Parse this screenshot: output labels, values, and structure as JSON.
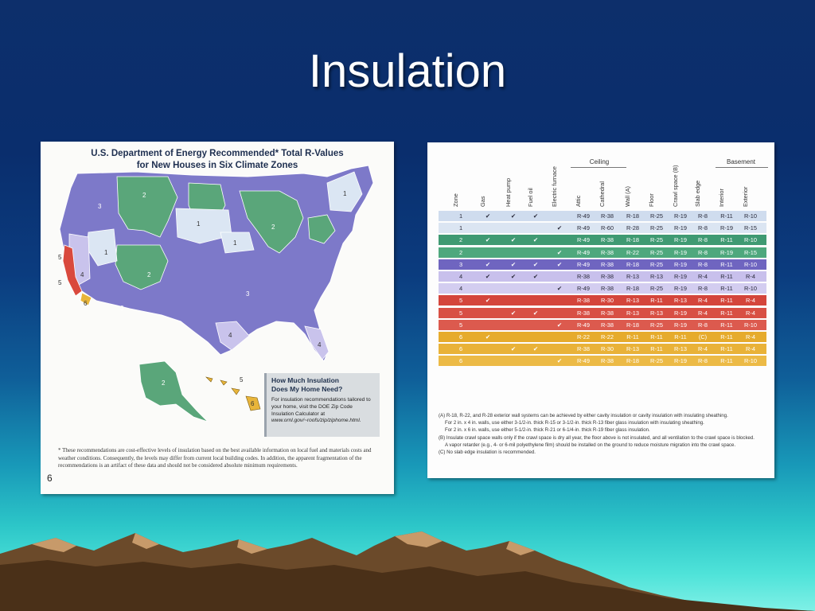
{
  "slide": {
    "title": "Insulation"
  },
  "map_panel": {
    "title_line1": "U.S. Department of Energy Recommended* Total R-Values",
    "title_line2": "for New Houses in Six Climate Zones",
    "zone_labels": [
      "1",
      "1",
      "1",
      "1",
      "2",
      "2",
      "2",
      "3",
      "3",
      "3",
      "4",
      "4",
      "4",
      "5",
      "5",
      "6",
      "2",
      "5",
      "6"
    ],
    "note_title_line1": "How Much Insulation",
    "note_title_line2": "Does My Home Need?",
    "note_body": "For insulation recommendations tailored to your home, visit the DOE Zip Code Insulation Calculator at",
    "note_url": "www.ornl.gov/~roofs/zip/ziphome.html.",
    "footnote": "* These recommendations are cost-effective levels of insulation based on the best available information on local fuel and materials costs and weather conditions. Consequently, the levels may differ from current local building codes. In addition, the apparent fragmentation of the recommendations is an artifact of these data and should not be considered absolute minimum requirements.",
    "page_number": "6",
    "zone_colors": {
      "1": "#dbe6f3",
      "2": "#5aa67a",
      "3": "#7d79c9",
      "4": "#c9c3ec",
      "5": "#d9493d",
      "6": "#e8b53a"
    }
  },
  "table_panel": {
    "group_headers": {
      "ceiling": "Ceiling",
      "basement": "Basement"
    },
    "columns": [
      "Zone",
      "Gas",
      "Heat pump",
      "Fuel oil",
      "Electric furnace",
      "Attic",
      "Cathedral",
      "Wall (A)",
      "Floor",
      "Crawl space (B)",
      "Slab edge",
      "Interior",
      "Exterior"
    ],
    "rows": [
      {
        "zone": "1",
        "gas": "✔",
        "heat_pump": "✔",
        "fuel_oil": "✔",
        "electric": "",
        "attic": "R-49",
        "cathedral": "R-38",
        "wall": "R-18",
        "floor": "R-25",
        "crawl": "R-19",
        "slab": "R-8",
        "interior": "R-11",
        "exterior": "R-10",
        "color": "#cfdcee",
        "light": true
      },
      {
        "zone": "1",
        "gas": "",
        "heat_pump": "",
        "fuel_oil": "",
        "electric": "✔",
        "attic": "R-49",
        "cathedral": "R-60",
        "wall": "R-28",
        "floor": "R-25",
        "crawl": "R-19",
        "slab": "R-8",
        "interior": "R-19",
        "exterior": "R-15",
        "color": "#dbe5f2",
        "light": true
      },
      {
        "zone": "2",
        "gas": "✔",
        "heat_pump": "✔",
        "fuel_oil": "✔",
        "electric": "",
        "attic": "R-49",
        "cathedral": "R-38",
        "wall": "R-18",
        "floor": "R-25",
        "crawl": "R-19",
        "slab": "R-8",
        "interior": "R-11",
        "exterior": "R-10",
        "color": "#3f9a72",
        "light": false
      },
      {
        "zone": "2",
        "gas": "",
        "heat_pump": "",
        "fuel_oil": "",
        "electric": "✔",
        "attic": "R-49",
        "cathedral": "R-38",
        "wall": "R-22",
        "floor": "R-25",
        "crawl": "R-19",
        "slab": "R-8",
        "interior": "R-19",
        "exterior": "R-15",
        "color": "#4ea87d",
        "light": false
      },
      {
        "zone": "3",
        "gas": "✔",
        "heat_pump": "✔",
        "fuel_oil": "✔",
        "electric": "✔",
        "attic": "R-49",
        "cathedral": "R-38",
        "wall": "R-18",
        "floor": "R-25",
        "crawl": "R-19",
        "slab": "R-8",
        "interior": "R-11",
        "exterior": "R-10",
        "color": "#6f65c0",
        "light": false
      },
      {
        "zone": "4",
        "gas": "✔",
        "heat_pump": "✔",
        "fuel_oil": "✔",
        "electric": "",
        "attic": "R-38",
        "cathedral": "R-38",
        "wall": "R-13",
        "floor": "R-13",
        "crawl": "R-19",
        "slab": "R-4",
        "interior": "R-11",
        "exterior": "R-4",
        "color": "#c8c0ec",
        "light": true
      },
      {
        "zone": "4",
        "gas": "",
        "heat_pump": "",
        "fuel_oil": "",
        "electric": "✔",
        "attic": "R-49",
        "cathedral": "R-38",
        "wall": "R-18",
        "floor": "R-25",
        "crawl": "R-19",
        "slab": "R-8",
        "interior": "R-11",
        "exterior": "R-10",
        "color": "#d3cdf0",
        "light": true
      },
      {
        "zone": "5",
        "gas": "✔",
        "heat_pump": "",
        "fuel_oil": "",
        "electric": "",
        "attic": "R-38",
        "cathedral": "R-30",
        "wall": "R-13",
        "floor": "R-11",
        "crawl": "R-13",
        "slab": "R-4",
        "interior": "R-11",
        "exterior": "R-4",
        "color": "#d4453b",
        "light": false
      },
      {
        "zone": "5",
        "gas": "",
        "heat_pump": "✔",
        "fuel_oil": "✔",
        "electric": "",
        "attic": "R-38",
        "cathedral": "R-38",
        "wall": "R-13",
        "floor": "R-13",
        "crawl": "R-19",
        "slab": "R-4",
        "interior": "R-11",
        "exterior": "R-4",
        "color": "#d84f44",
        "light": false
      },
      {
        "zone": "5",
        "gas": "",
        "heat_pump": "",
        "fuel_oil": "",
        "electric": "✔",
        "attic": "R-49",
        "cathedral": "R-38",
        "wall": "R-18",
        "floor": "R-25",
        "crawl": "R-19",
        "slab": "R-8",
        "interior": "R-11",
        "exterior": "R-10",
        "color": "#dc5a4e",
        "light": false
      },
      {
        "zone": "6",
        "gas": "✔",
        "heat_pump": "",
        "fuel_oil": "",
        "electric": "",
        "attic": "R-22",
        "cathedral": "R-22",
        "wall": "R-11",
        "floor": "R-11",
        "crawl": "R-11",
        "slab": "(C)",
        "interior": "R-11",
        "exterior": "R-4",
        "color": "#e6ab2c",
        "light": false
      },
      {
        "zone": "6",
        "gas": "",
        "heat_pump": "✔",
        "fuel_oil": "✔",
        "electric": "",
        "attic": "R-38",
        "cathedral": "R-30",
        "wall": "R-13",
        "floor": "R-11",
        "crawl": "R-13",
        "slab": "R-4",
        "interior": "R-11",
        "exterior": "R-4",
        "color": "#e9b238",
        "light": false
      },
      {
        "zone": "6",
        "gas": "",
        "heat_pump": "",
        "fuel_oil": "",
        "electric": "✔",
        "attic": "R-49",
        "cathedral": "R-38",
        "wall": "R-18",
        "floor": "R-25",
        "crawl": "R-19",
        "slab": "R-8",
        "interior": "R-11",
        "exterior": "R-10",
        "color": "#ecba46",
        "light": false
      }
    ],
    "notes": [
      "(A) R-18, R-22, and R-28 exterior wall systems can be achieved by either cavity insulation or cavity insulation with insulating sheathing.",
      "For 2 in. x 4 in. walls, use either 3-1/2-in. thick R-15 or 3-1/2-in. thick R-13 fiber glass insulation with insulating sheathing.",
      "For 2 in. x 6 in. walls, use either 5-1/2-in. thick R-21 or 6-1/4-in. thick R-19 fiber glass insulation.",
      "(B) Insulate crawl space walls only if the crawl space is dry all year, the floor above is not insulated, and all ventilation to the crawl space is blocked.",
      "A vapor retarder (e.g., 4- or 6-mil polyethylene film) should be installed on the ground to reduce moisture migration into the crawl space.",
      "(C) No slab edge insulation is recommended."
    ]
  }
}
